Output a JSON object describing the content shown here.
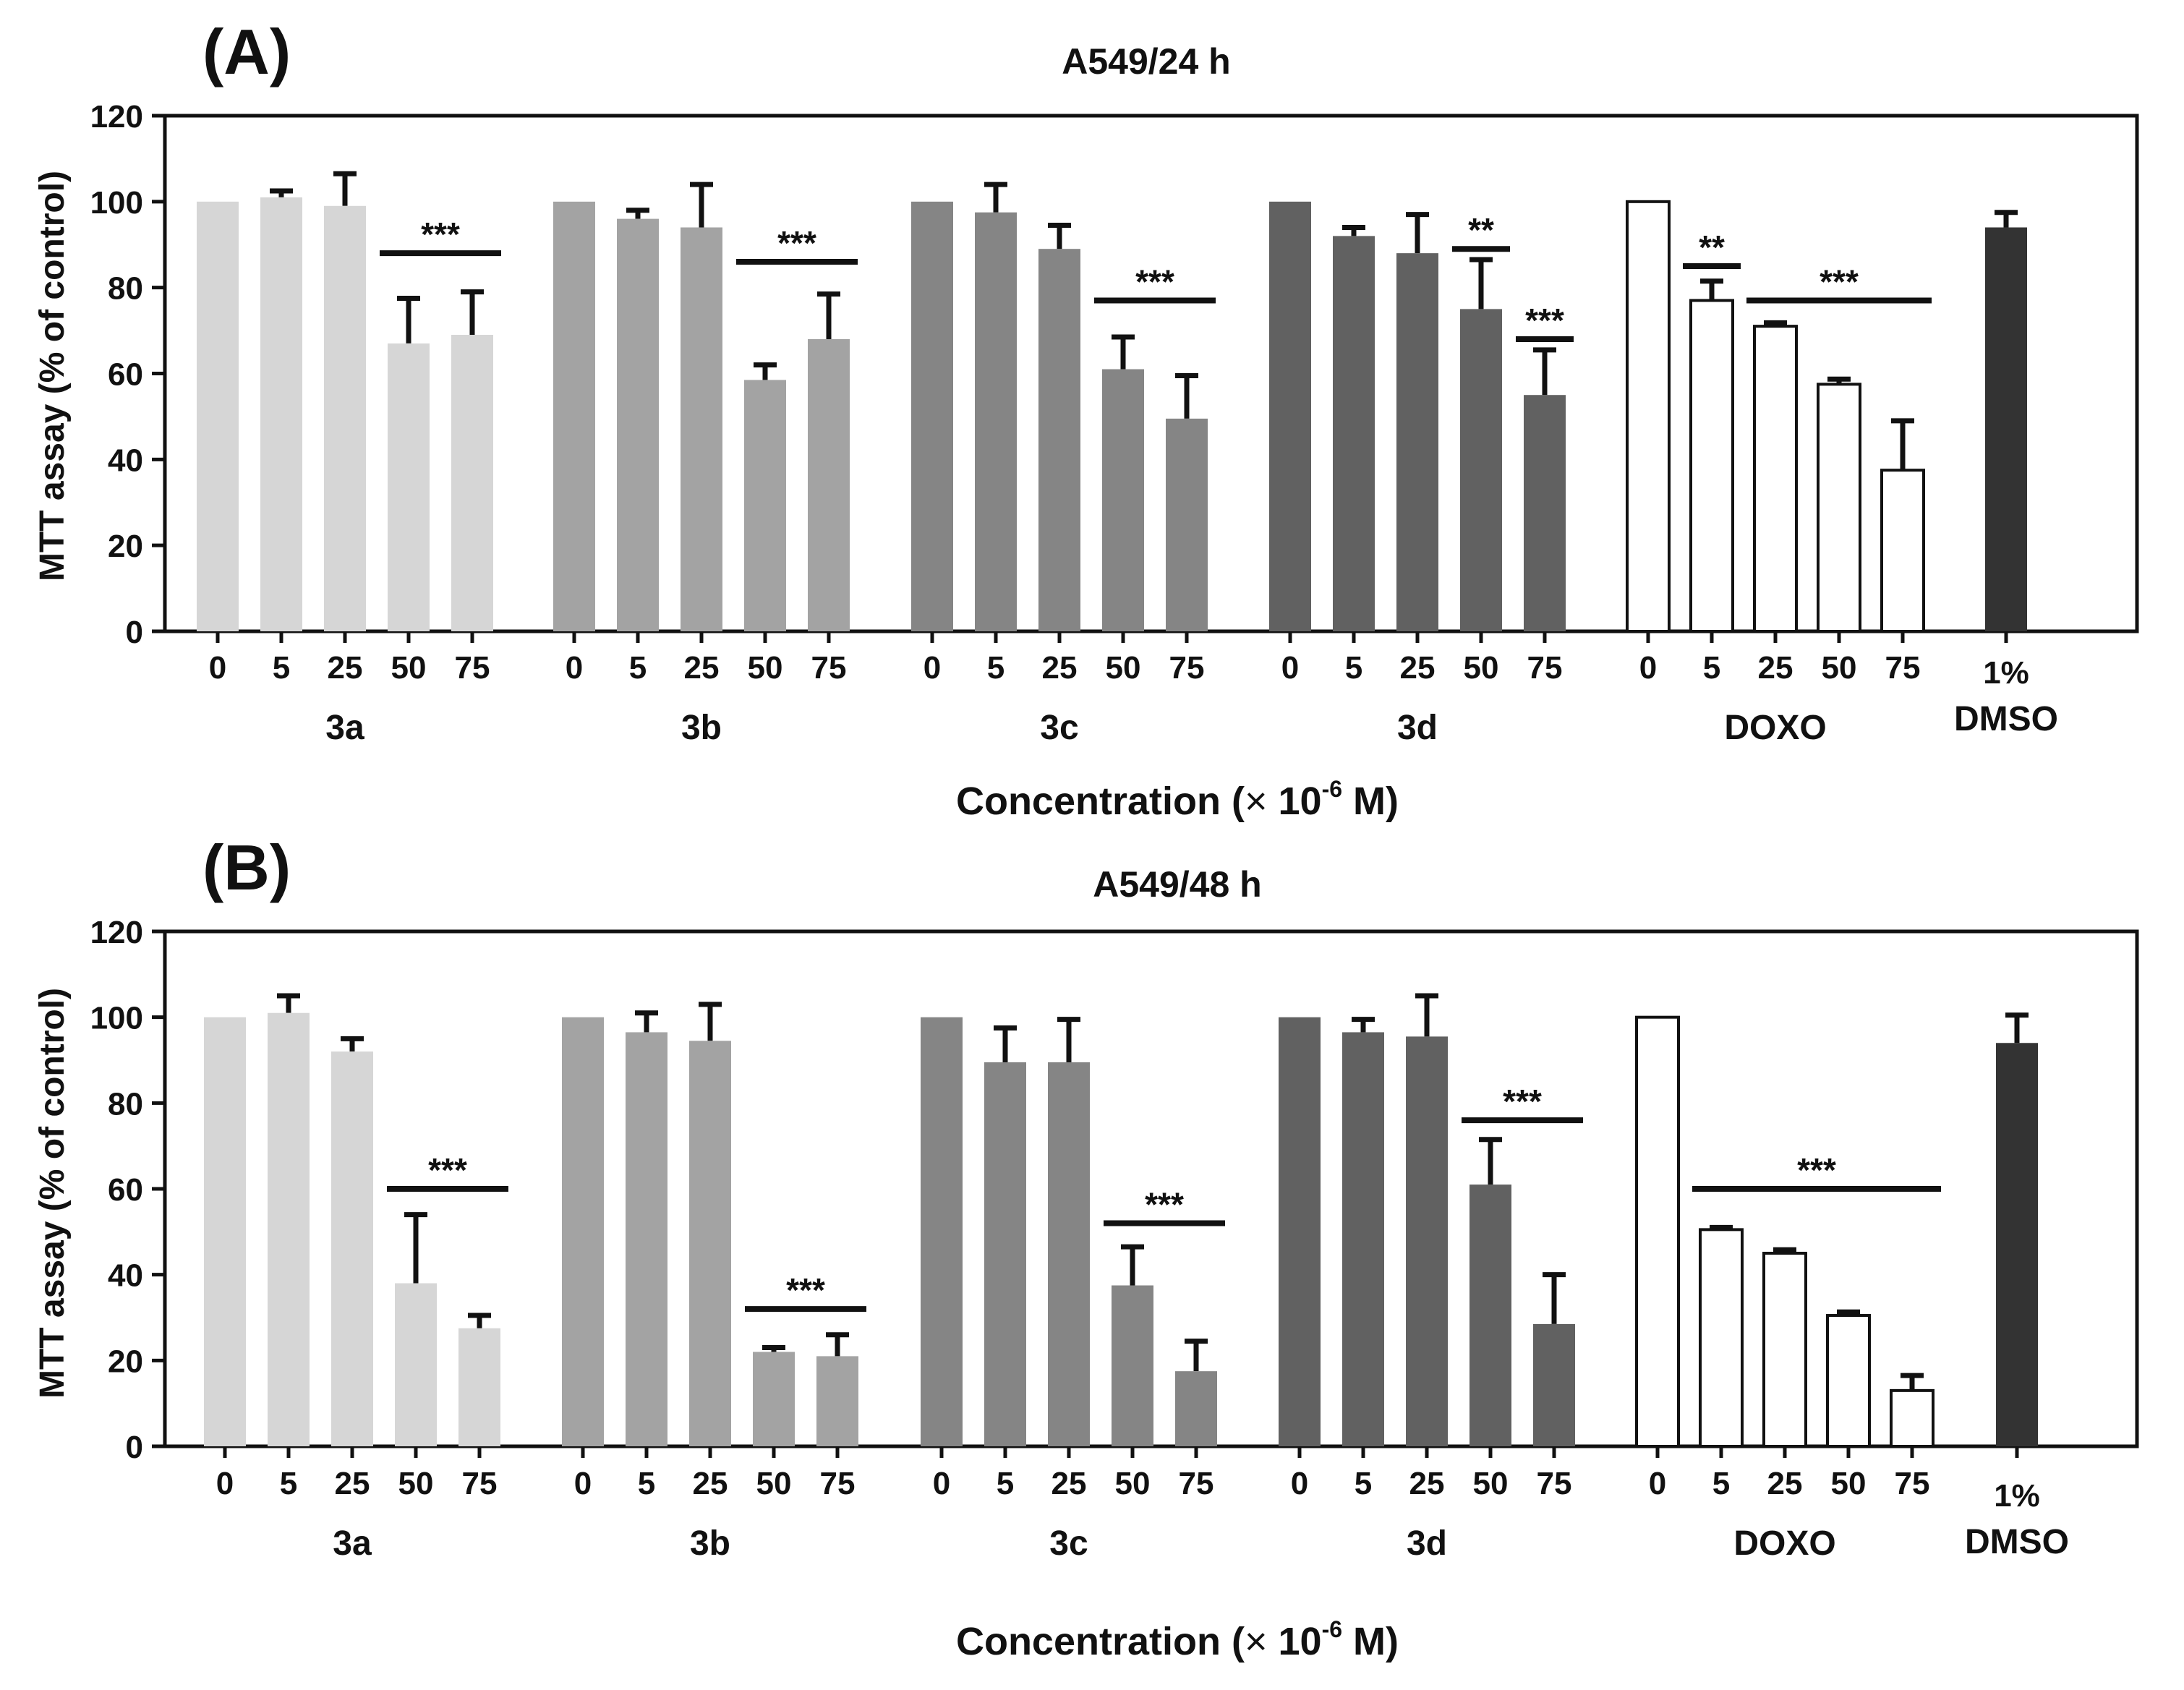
{
  "chart_data": [
    {
      "panel_label": "(A)",
      "type": "bar",
      "title": "A549/24 h",
      "ylabel": "MTT assay (% of control)",
      "xlabel_prefix": "Concentration (",
      "xlabel_times": "×",
      "xlabel_base": " 10",
      "xlabel_exp": "-6",
      "xlabel_suffix": " M)",
      "ylim": [
        0,
        120
      ],
      "yticks": [
        0,
        20,
        40,
        60,
        80,
        100,
        120
      ],
      "colors": {
        "3a": "#d6d6d6",
        "3b": "#a3a3a3",
        "3c": "#858585",
        "3d": "#616161",
        "DOXO": "#ffffff",
        "DMSO": "#333333"
      },
      "groups": [
        {
          "name": "3a",
          "categories": [
            "0",
            "5",
            "25",
            "50",
            "75"
          ],
          "values": [
            100,
            101,
            99,
            67,
            69
          ],
          "errors": [
            0,
            1.5,
            7.5,
            10.5,
            10
          ]
        },
        {
          "name": "3b",
          "categories": [
            "0",
            "5",
            "25",
            "50",
            "75"
          ],
          "values": [
            100,
            96,
            94,
            58.5,
            68
          ],
          "errors": [
            0,
            2,
            10,
            3.5,
            10.5
          ]
        },
        {
          "name": "3c",
          "categories": [
            "0",
            "5",
            "25",
            "50",
            "75"
          ],
          "values": [
            100,
            97.5,
            89,
            61,
            49.5
          ],
          "errors": [
            0,
            6.5,
            5.5,
            7.5,
            10
          ]
        },
        {
          "name": "3d",
          "categories": [
            "0",
            "5",
            "25",
            "50",
            "75"
          ],
          "values": [
            100,
            92,
            88,
            75,
            55
          ],
          "errors": [
            0,
            2,
            9,
            11.5,
            10.5
          ]
        },
        {
          "name": "DOXO",
          "categories": [
            "0",
            "5",
            "25",
            "50",
            "75"
          ],
          "values": [
            100,
            77,
            71,
            57.5,
            37.5
          ],
          "errors": [
            0,
            4.5,
            0.8,
            1.2,
            11.5
          ]
        },
        {
          "name": "DMSO",
          "categories": [
            "1%"
          ],
          "values": [
            94
          ],
          "errors": [
            3.5
          ]
        }
      ],
      "significance": [
        {
          "label": "***",
          "group": 0,
          "from": 3,
          "to": 4,
          "at": 88
        },
        {
          "label": "***",
          "group": 1,
          "from": 3,
          "to": 4,
          "at": 86
        },
        {
          "label": "***",
          "group": 2,
          "from": 3,
          "to": 4,
          "at": 77
        },
        {
          "label": "**",
          "group": 3,
          "from": 3,
          "to": 3,
          "at": 89
        },
        {
          "label": "***",
          "group": 3,
          "from": 4,
          "to": 4,
          "at": 68
        },
        {
          "label": "**",
          "group": 4,
          "from": 1,
          "to": 1,
          "at": 85
        },
        {
          "label": "***",
          "group": 4,
          "from": 2,
          "to": 4,
          "at": 77
        }
      ]
    },
    {
      "panel_label": "(B)",
      "type": "bar",
      "title": "A549/48 h",
      "ylabel": "MTT assay (% of control)",
      "xlabel_prefix": "Concentration (",
      "xlabel_times": "×",
      "xlabel_base": " 10",
      "xlabel_exp": "-6",
      "xlabel_suffix": " M)",
      "ylim": [
        0,
        120
      ],
      "yticks": [
        0,
        20,
        40,
        60,
        80,
        100,
        120
      ],
      "colors": {
        "3a": "#d6d6d6",
        "3b": "#a3a3a3",
        "3c": "#858585",
        "3d": "#616161",
        "DOXO": "#ffffff",
        "DMSO": "#333333"
      },
      "groups": [
        {
          "name": "3a",
          "categories": [
            "0",
            "5",
            "25",
            "50",
            "75"
          ],
          "values": [
            100,
            101,
            92,
            38,
            27.5
          ],
          "errors": [
            0,
            4,
            3,
            16,
            3
          ]
        },
        {
          "name": "3b",
          "categories": [
            "0",
            "5",
            "25",
            "50",
            "75"
          ],
          "values": [
            100,
            96.5,
            94.5,
            22,
            21
          ],
          "errors": [
            0,
            4.5,
            8.5,
            1,
            5
          ]
        },
        {
          "name": "3c",
          "categories": [
            "0",
            "5",
            "25",
            "50",
            "75"
          ],
          "values": [
            100,
            89.5,
            89.5,
            37.5,
            17.5
          ],
          "errors": [
            0,
            8,
            10,
            9,
            7
          ]
        },
        {
          "name": "3d",
          "categories": [
            "0",
            "5",
            "25",
            "50",
            "75"
          ],
          "values": [
            100,
            96.5,
            95.5,
            61,
            28.5
          ],
          "errors": [
            0,
            3,
            9.5,
            10.5,
            11.5
          ]
        },
        {
          "name": "DOXO",
          "categories": [
            "0",
            "5",
            "25",
            "50",
            "75"
          ],
          "values": [
            100,
            50.5,
            45,
            30.5,
            13
          ],
          "errors": [
            0,
            0.5,
            0.8,
            0.8,
            3.5
          ]
        },
        {
          "name": "DMSO",
          "categories": [
            "1%"
          ],
          "values": [
            94
          ],
          "errors": [
            6.5
          ]
        }
      ],
      "significance": [
        {
          "label": "***",
          "group": 0,
          "from": 3,
          "to": 4,
          "at": 60
        },
        {
          "label": "***",
          "group": 1,
          "from": 3,
          "to": 4,
          "at": 32
        },
        {
          "label": "***",
          "group": 2,
          "from": 3,
          "to": 4,
          "at": 52
        },
        {
          "label": "***",
          "group": 3,
          "from": 3,
          "to": 4,
          "at": 76
        },
        {
          "label": "***",
          "group": 4,
          "from": 1,
          "to": 4,
          "at": 60
        }
      ]
    }
  ]
}
